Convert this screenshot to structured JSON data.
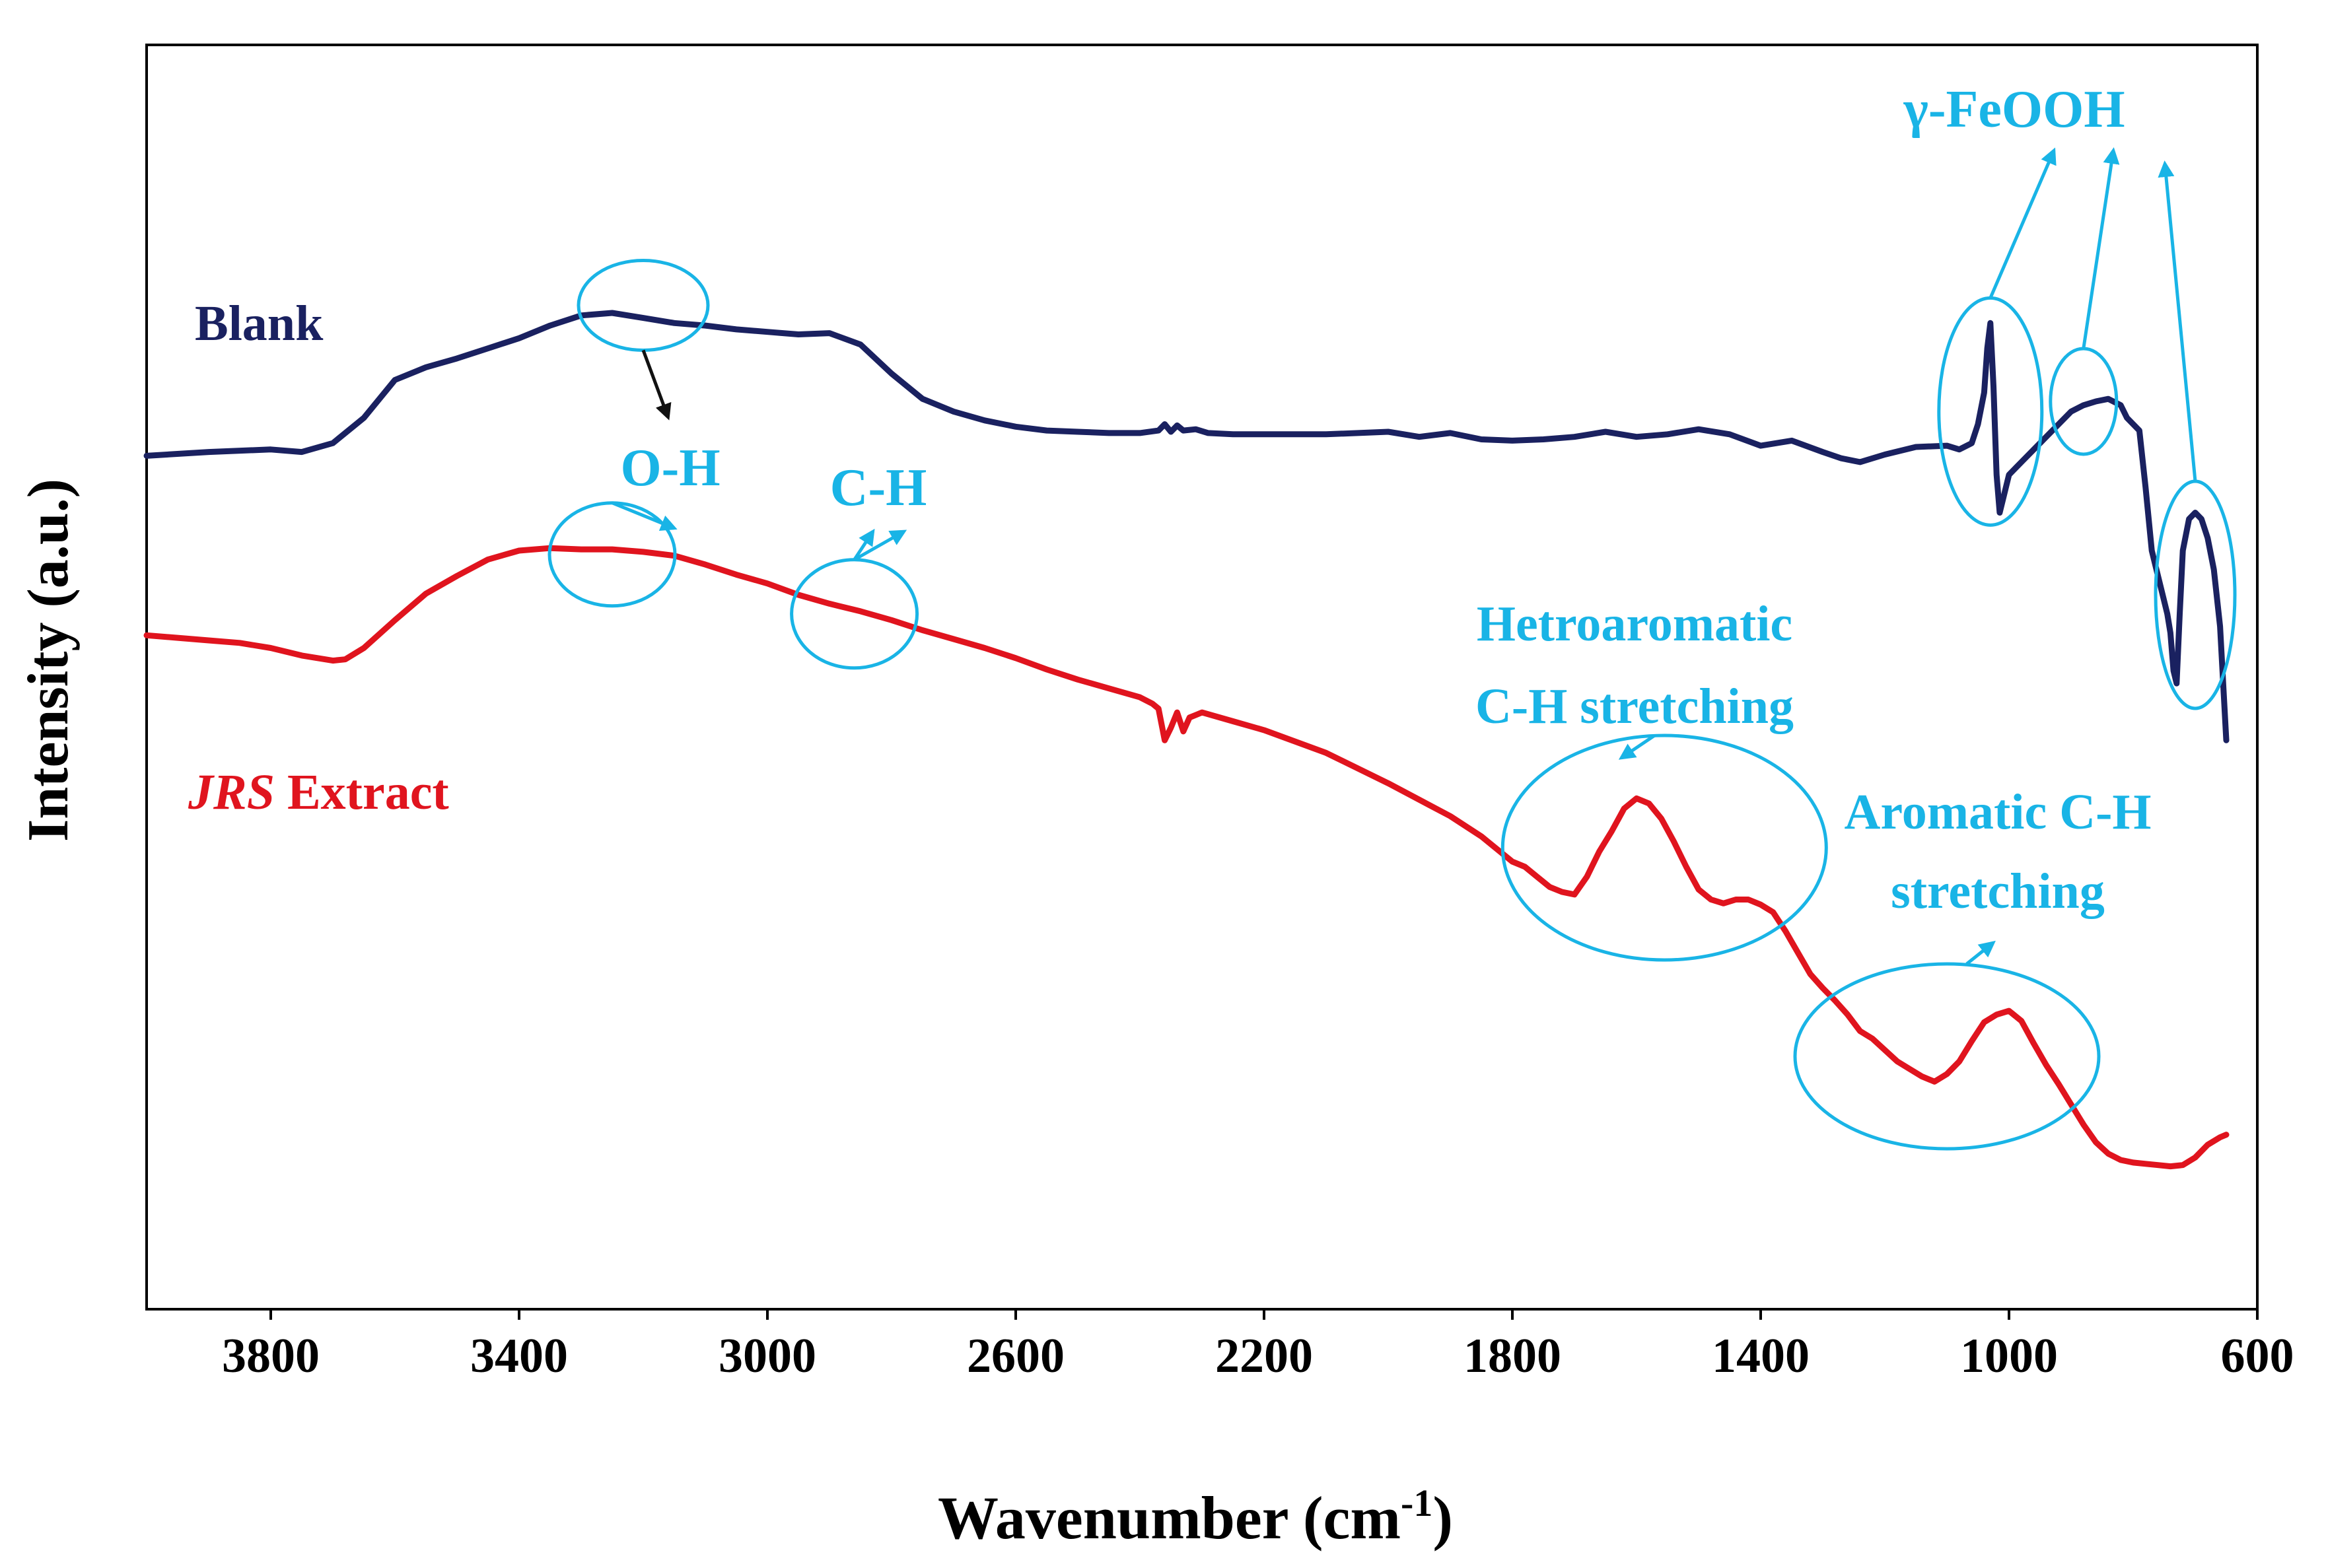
{
  "chart_data": {
    "type": "line",
    "title": "",
    "xlabel": "Wavenumber (cm",
    "xlabel_sup": "-1",
    "xlabel_close": ")",
    "ylabel": "Intensity  (a.u.)",
    "xlim": [
      4000,
      600
    ],
    "x_reversed": true,
    "ylim": [
      0,
      100
    ],
    "y_ticks_shown": false,
    "x_ticks": [
      3800,
      3400,
      3000,
      2600,
      2200,
      1800,
      1400,
      1000,
      600
    ],
    "x_tick_labels": [
      "3800",
      "3400",
      "3000",
      "2600",
      "2200",
      "1800",
      "1400",
      "1000",
      "600"
    ],
    "grid": false,
    "series": [
      {
        "name": "Blank",
        "label_prefix": "",
        "label_suffix": "Blank",
        "color": "#1a2160",
        "x": [
          4000,
          3900,
          3800,
          3750,
          3700,
          3650,
          3600,
          3550,
          3500,
          3450,
          3400,
          3350,
          3300,
          3250,
          3200,
          3150,
          3100,
          3050,
          3000,
          2950,
          2900,
          2850,
          2800,
          2750,
          2700,
          2650,
          2600,
          2550,
          2500,
          2450,
          2400,
          2370,
          2360,
          2350,
          2340,
          2330,
          2310,
          2290,
          2250,
          2200,
          2100,
          2000,
          1950,
          1900,
          1850,
          1800,
          1750,
          1700,
          1650,
          1600,
          1550,
          1500,
          1450,
          1400,
          1350,
          1300,
          1270,
          1240,
          1200,
          1150,
          1100,
          1080,
          1060,
          1050,
          1040,
          1035,
          1030,
          1025,
          1020,
          1015,
          1010,
          1000,
          980,
          950,
          920,
          900,
          880,
          860,
          840,
          820,
          810,
          800,
          790,
          780,
          770,
          760,
          750,
          745,
          740,
          735,
          730,
          725,
          720,
          710,
          700,
          690,
          680,
          670,
          660,
          650
        ],
        "y": [
          67.5,
          67.8,
          68.0,
          67.8,
          68.5,
          70.5,
          73.5,
          74.5,
          75.2,
          76.0,
          76.8,
          77.8,
          78.6,
          78.8,
          78.4,
          78.0,
          77.8,
          77.5,
          77.3,
          77.1,
          77.2,
          76.3,
          74.0,
          72.0,
          71.0,
          70.3,
          69.8,
          69.5,
          69.4,
          69.3,
          69.3,
          69.5,
          70.0,
          69.4,
          69.9,
          69.5,
          69.6,
          69.3,
          69.2,
          69.2,
          69.2,
          69.4,
          69.0,
          69.3,
          68.8,
          68.7,
          68.8,
          69.0,
          69.4,
          69.0,
          69.2,
          69.6,
          69.2,
          68.3,
          68.7,
          67.8,
          67.3,
          67.0,
          67.6,
          68.2,
          68.3,
          68.0,
          68.5,
          70.0,
          72.5,
          76.0,
          78.0,
          73.0,
          66.0,
          63.0,
          64.0,
          66.0,
          67.0,
          68.5,
          70.0,
          71.0,
          71.5,
          71.8,
          72.0,
          71.5,
          70.5,
          70.0,
          69.5,
          65.0,
          60.0,
          58.0,
          56.0,
          55.0,
          53.5,
          50.5,
          49.5,
          55.0,
          60.0,
          62.5,
          63.0,
          62.5,
          61.0,
          58.5,
          54.0,
          45.0
        ]
      },
      {
        "name": "JRS Extract",
        "label_prefix": "JRS",
        "label_suffix": " Extract",
        "color": "#e0141e",
        "x": [
          4000,
          3950,
          3900,
          3850,
          3800,
          3750,
          3700,
          3680,
          3650,
          3600,
          3550,
          3500,
          3450,
          3400,
          3350,
          3300,
          3250,
          3200,
          3150,
          3100,
          3050,
          3000,
          2950,
          2900,
          2850,
          2800,
          2750,
          2700,
          2650,
          2600,
          2550,
          2500,
          2450,
          2400,
          2380,
          2370,
          2360,
          2350,
          2340,
          2330,
          2320,
          2310,
          2300,
          2250,
          2200,
          2100,
          2000,
          1900,
          1850,
          1800,
          1780,
          1760,
          1740,
          1720,
          1700,
          1680,
          1660,
          1640,
          1620,
          1600,
          1580,
          1560,
          1540,
          1520,
          1500,
          1480,
          1460,
          1440,
          1420,
          1400,
          1380,
          1360,
          1340,
          1320,
          1300,
          1280,
          1260,
          1240,
          1220,
          1200,
          1180,
          1160,
          1140,
          1120,
          1100,
          1080,
          1060,
          1040,
          1020,
          1000,
          980,
          960,
          940,
          920,
          900,
          880,
          860,
          840,
          820,
          800,
          780,
          760,
          740,
          720,
          700,
          680,
          660,
          650
        ],
        "y": [
          53.3,
          53.1,
          52.9,
          52.7,
          52.3,
          51.7,
          51.3,
          51.4,
          52.3,
          54.5,
          56.6,
          58.0,
          59.3,
          60.0,
          60.2,
          60.1,
          60.1,
          59.9,
          59.6,
          58.9,
          58.1,
          57.4,
          56.5,
          55.8,
          55.2,
          54.5,
          53.7,
          53.0,
          52.3,
          51.5,
          50.6,
          49.8,
          49.1,
          48.4,
          47.9,
          47.5,
          45.0,
          46.0,
          47.2,
          45.7,
          46.8,
          47.0,
          47.2,
          46.5,
          45.8,
          44.0,
          41.6,
          39.0,
          37.4,
          35.4,
          35.0,
          34.2,
          33.4,
          33.0,
          32.8,
          34.2,
          36.2,
          37.8,
          39.6,
          40.4,
          40.0,
          38.8,
          37.0,
          35.0,
          33.2,
          32.4,
          32.1,
          32.4,
          32.4,
          32.0,
          31.4,
          29.9,
          28.2,
          26.5,
          25.4,
          24.4,
          23.3,
          22.0,
          21.4,
          20.5,
          19.6,
          19.0,
          18.4,
          18.0,
          18.6,
          19.6,
          21.2,
          22.7,
          23.3,
          23.6,
          22.8,
          21.0,
          19.3,
          17.8,
          16.2,
          14.6,
          13.2,
          12.3,
          11.8,
          11.6,
          11.5,
          11.4,
          11.3,
          11.4,
          12.0,
          13.0,
          13.6,
          13.8
        ]
      }
    ],
    "annotations": {
      "o_h": "O-H",
      "c_h": "C-H",
      "fe": "γ-FeOOH",
      "hetero_1": "Hetroaromatic",
      "hetero_2": "C-H stretching",
      "arom_1": "Aromatic C-H",
      "arom_2": "stretching"
    },
    "colors": {
      "annotation": "#19b4e6",
      "axis": "#000000",
      "arrow_dark": "#111111"
    }
  }
}
